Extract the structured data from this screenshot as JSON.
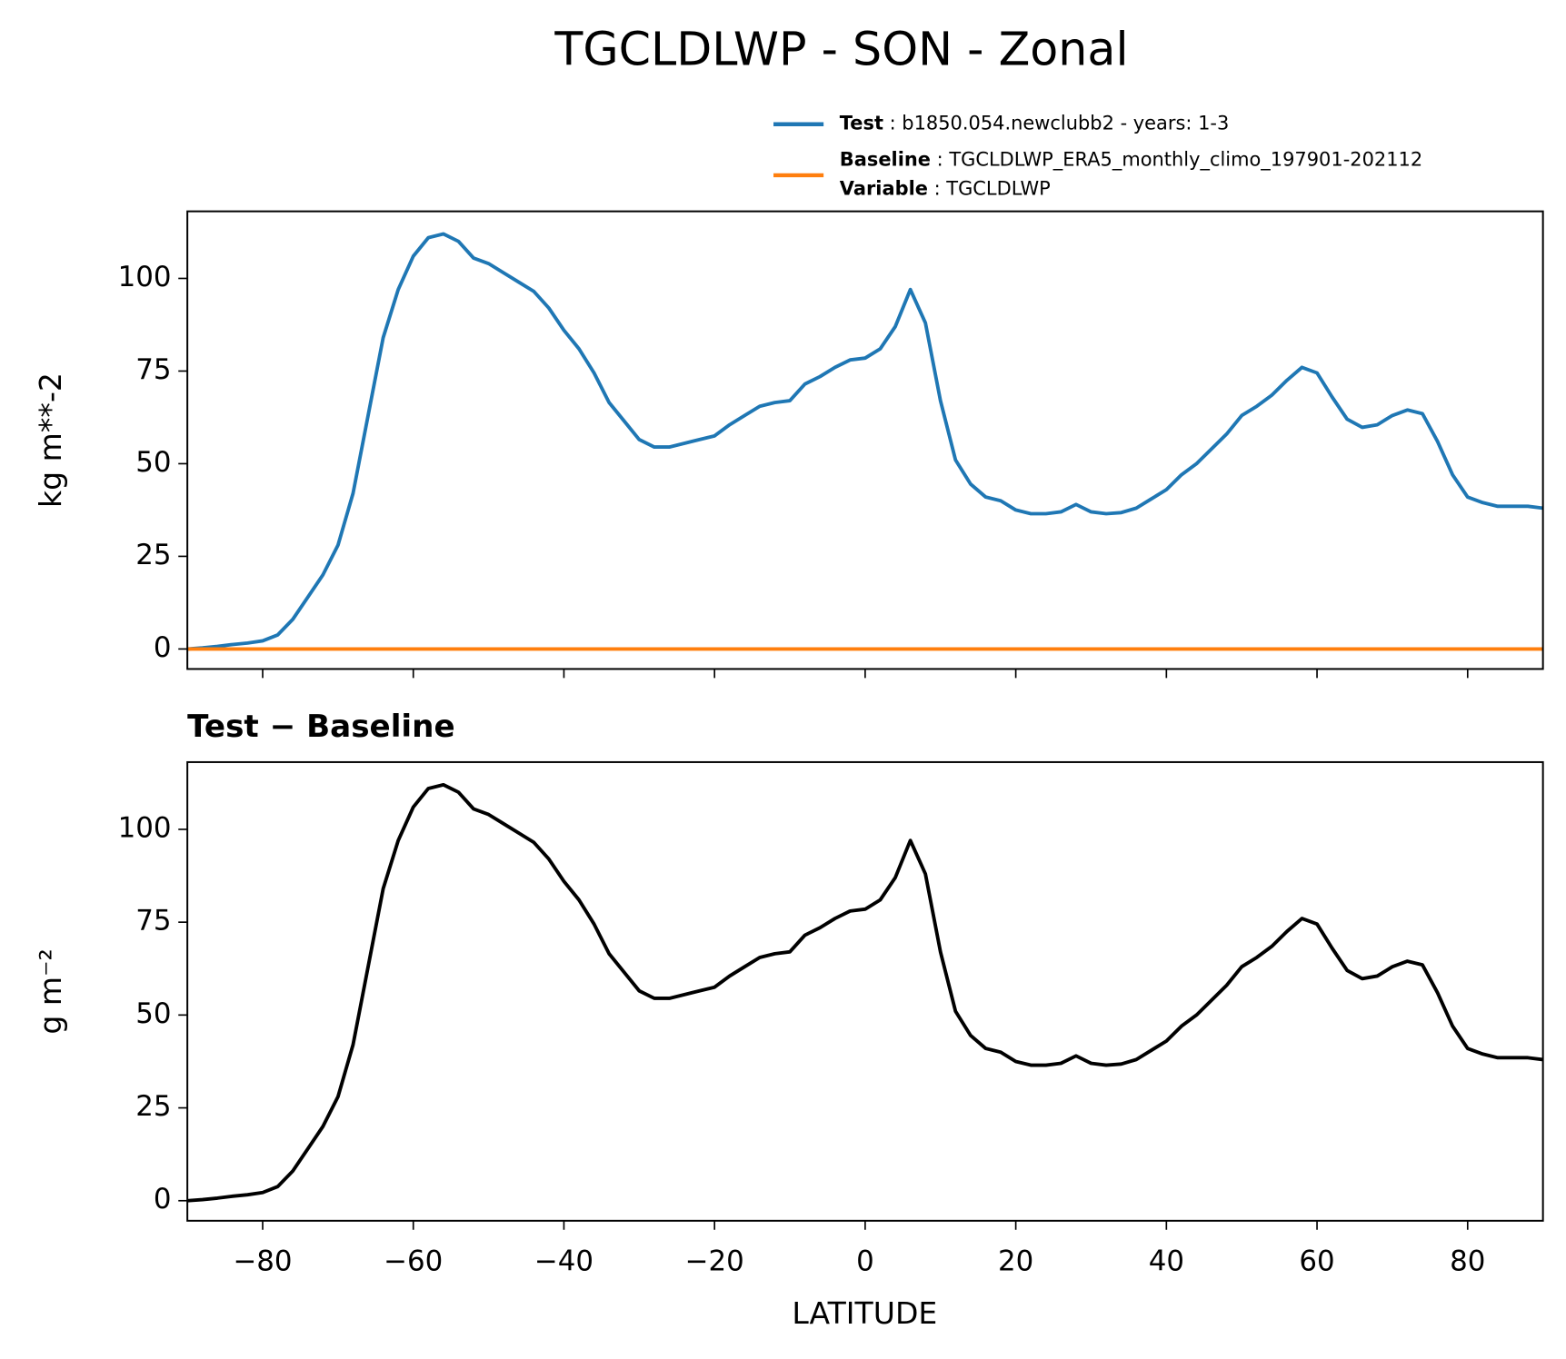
{
  "title": "TGCLDLWP - SON - Zonal",
  "chart_data": [
    {
      "type": "line",
      "ylabel": "kg m**-2",
      "x": [
        -90,
        -88,
        -86,
        -84,
        -82,
        -80,
        -78,
        -76,
        -74,
        -72,
        -70,
        -68,
        -66,
        -64,
        -62,
        -60,
        -58,
        -56,
        -54,
        -52,
        -50,
        -48,
        -46,
        -44,
        -42,
        -40,
        -38,
        -36,
        -34,
        -32,
        -30,
        -28,
        -26,
        -24,
        -22,
        -20,
        -18,
        -16,
        -14,
        -12,
        -10,
        -8,
        -6,
        -4,
        -2,
        0,
        2,
        4,
        6,
        8,
        10,
        12,
        14,
        16,
        18,
        20,
        22,
        24,
        26,
        28,
        30,
        32,
        34,
        36,
        38,
        40,
        42,
        44,
        46,
        48,
        50,
        52,
        54,
        56,
        58,
        60,
        62,
        64,
        66,
        68,
        70,
        72,
        74,
        76,
        78,
        80,
        82,
        84,
        86,
        88,
        90
      ],
      "series": [
        {
          "name": "Test",
          "label": ": b1850.054.newclubb2 - years: 1-3",
          "color": "#1f77b4",
          "values": [
            0,
            0.3,
            0.7,
            1.2,
            1.6,
            2.2,
            3.8,
            8,
            14,
            20,
            28,
            42,
            63,
            84,
            97,
            106,
            111,
            112,
            110,
            105.5,
            104,
            101.5,
            99,
            96.5,
            92,
            86,
            81,
            74.5,
            66.5,
            61.5,
            56.5,
            54.5,
            54.5,
            55.5,
            56.5,
            57.5,
            60.5,
            63,
            65.5,
            66.5,
            67,
            71.5,
            73.5,
            76,
            78,
            78.5,
            81,
            87,
            97,
            88,
            67,
            51,
            44.5,
            41,
            40,
            37.5,
            36.5,
            36.5,
            37,
            39,
            37,
            36.5,
            36.8,
            38,
            40.5,
            43,
            47,
            50,
            54,
            58,
            63,
            65.5,
            68.5,
            72.5,
            76,
            74.5,
            68,
            62,
            59.8,
            60.5,
            63,
            64.5,
            63.5,
            56,
            47,
            41,
            39.5,
            38.5,
            38.5,
            38.5,
            38
          ]
        },
        {
          "name": "Baseline",
          "label": ": TGCLDLWP_ERA5_monthly_climo_197901-202112",
          "color": "#ff7f0e",
          "values": [
            0,
            0,
            0,
            0,
            0,
            0,
            0,
            0,
            0,
            0,
            0,
            0,
            0,
            0,
            0,
            0,
            0,
            0,
            0,
            0,
            0,
            0,
            0,
            0,
            0,
            0,
            0,
            0,
            0,
            0,
            0,
            0,
            0,
            0,
            0,
            0,
            0,
            0,
            0,
            0,
            0,
            0,
            0,
            0,
            0,
            0,
            0,
            0,
            0,
            0,
            0,
            0,
            0,
            0,
            0,
            0,
            0,
            0,
            0,
            0,
            0,
            0,
            0,
            0,
            0,
            0,
            0,
            0,
            0,
            0,
            0,
            0,
            0,
            0,
            0,
            0,
            0,
            0,
            0,
            0,
            0,
            0,
            0,
            0,
            0,
            0,
            0,
            0,
            0,
            0,
            0
          ]
        }
      ],
      "legend_variable": {
        "name": "Variable",
        "label": ": TGCLDLWP"
      },
      "xlim": [
        -90,
        90
      ],
      "ylim": [
        -5.4,
        118.1
      ],
      "xticks": [
        -80,
        -60,
        -40,
        -20,
        0,
        20,
        40,
        60,
        80
      ],
      "yticks": [
        0,
        25,
        50,
        75,
        100
      ]
    },
    {
      "type": "line",
      "title": "Test − Baseline",
      "ylabel": "g m⁻²",
      "xlabel": "LATITUDE",
      "x": [
        -90,
        -88,
        -86,
        -84,
        -82,
        -80,
        -78,
        -76,
        -74,
        -72,
        -70,
        -68,
        -66,
        -64,
        -62,
        -60,
        -58,
        -56,
        -54,
        -52,
        -50,
        -48,
        -46,
        -44,
        -42,
        -40,
        -38,
        -36,
        -34,
        -32,
        -30,
        -28,
        -26,
        -24,
        -22,
        -20,
        -18,
        -16,
        -14,
        -12,
        -10,
        -8,
        -6,
        -4,
        -2,
        0,
        2,
        4,
        6,
        8,
        10,
        12,
        14,
        16,
        18,
        20,
        22,
        24,
        26,
        28,
        30,
        32,
        34,
        36,
        38,
        40,
        42,
        44,
        46,
        48,
        50,
        52,
        54,
        56,
        58,
        60,
        62,
        64,
        66,
        68,
        70,
        72,
        74,
        76,
        78,
        80,
        82,
        84,
        86,
        88,
        90
      ],
      "series": [
        {
          "color": "#000000",
          "values": [
            0,
            0.3,
            0.7,
            1.2,
            1.6,
            2.2,
            3.8,
            8,
            14,
            20,
            28,
            42,
            63,
            84,
            97,
            106,
            111,
            112,
            110,
            105.5,
            104,
            101.5,
            99,
            96.5,
            92,
            86,
            81,
            74.5,
            66.5,
            61.5,
            56.5,
            54.5,
            54.5,
            55.5,
            56.5,
            57.5,
            60.5,
            63,
            65.5,
            66.5,
            67,
            71.5,
            73.5,
            76,
            78,
            78.5,
            81,
            87,
            97,
            88,
            67,
            51,
            44.5,
            41,
            40,
            37.5,
            36.5,
            36.5,
            37,
            39,
            37,
            36.5,
            36.8,
            38,
            40.5,
            43,
            47,
            50,
            54,
            58,
            63,
            65.5,
            68.5,
            72.5,
            76,
            74.5,
            68,
            62,
            59.8,
            60.5,
            63,
            64.5,
            63.5,
            56,
            47,
            41,
            39.5,
            38.5,
            38.5,
            38.5,
            38
          ]
        }
      ],
      "xlim": [
        -90,
        90
      ],
      "ylim": [
        -5.4,
        118.1
      ],
      "xticks": [
        {
          "value": -80,
          "label": "−80"
        },
        {
          "value": -60,
          "label": "−60"
        },
        {
          "value": -40,
          "label": "−40"
        },
        {
          "value": -20,
          "label": "−20"
        },
        0,
        20,
        40,
        60,
        80
      ],
      "yticks": [
        0,
        25,
        50,
        75,
        100
      ]
    }
  ]
}
